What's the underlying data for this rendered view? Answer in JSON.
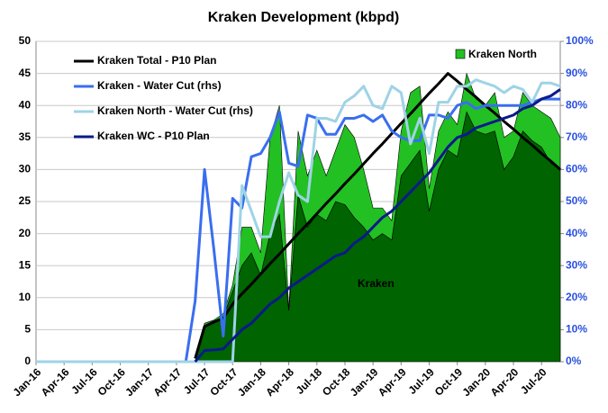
{
  "chart_data": {
    "type": "area",
    "title": "Kraken Development (kbpd)",
    "stacked": true,
    "grid": true,
    "categories": [
      "Jan-16",
      null,
      null,
      "Apr-16",
      null,
      null,
      "Jul-16",
      null,
      null,
      "Oct-16",
      null,
      null,
      "Jan-17",
      null,
      null,
      "Apr-17",
      null,
      null,
      "Jul-17",
      null,
      null,
      "Oct-17",
      null,
      null,
      "Jan-18",
      null,
      null,
      "Apr-18",
      null,
      null,
      "Jul-18",
      null,
      null,
      "Oct-18",
      null,
      null,
      "Jan-19",
      null,
      null,
      "Apr-19",
      null,
      null,
      "Jul-19",
      null,
      null,
      "Oct-19",
      null,
      null,
      "Jan-20",
      null,
      null,
      "Apr-20",
      null,
      null,
      "Jul-20",
      null,
      null
    ],
    "ylim": [
      0,
      50
    ],
    "yticks": [
      0,
      5,
      10,
      15,
      20,
      25,
      30,
      35,
      40,
      45,
      50
    ],
    "y2lim": [
      0,
      100
    ],
    "y2ticks": [
      {
        "value": 0,
        "label": "0%"
      },
      {
        "value": 10,
        "label": "10%"
      },
      {
        "value": 20,
        "label": "20%"
      },
      {
        "value": 30,
        "label": "30%"
      },
      {
        "value": 40,
        "label": "40%"
      },
      {
        "value": 50,
        "label": "50%"
      },
      {
        "value": 60,
        "label": "60%"
      },
      {
        "value": 70,
        "label": "70%"
      },
      {
        "value": 80,
        "label": "80%"
      },
      {
        "value": 90,
        "label": "90%"
      },
      {
        "value": 100,
        "label": "100%"
      }
    ],
    "series": [
      {
        "name": "Kraken",
        "type": "area",
        "color": "#006400",
        "values": [
          0,
          0,
          0,
          0,
          0,
          0,
          0,
          0,
          0,
          0,
          0,
          0,
          0,
          0,
          0,
          0,
          0,
          0,
          5.5,
          6,
          7,
          11,
          15,
          17,
          13.5,
          20,
          23,
          8,
          26,
          21,
          23,
          22,
          25,
          24.5,
          22.5,
          21,
          19,
          20,
          19,
          29,
          31,
          33,
          23.5,
          30,
          33,
          32,
          39,
          36,
          35.5,
          36,
          30,
          32,
          36,
          34.5,
          33.5,
          31,
          30
        ]
      },
      {
        "name": "Kraken North",
        "type": "area",
        "color": "#22c022",
        "values": [
          0,
          0,
          0,
          0,
          0,
          0,
          0,
          0,
          0,
          0,
          0,
          0,
          0,
          0,
          0,
          0,
          0,
          0,
          0.5,
          0.5,
          0.5,
          1,
          6,
          4,
          3.5,
          15,
          17,
          0,
          10,
          8,
          10,
          7,
          8,
          12.5,
          12.5,
          9,
          5,
          4,
          3,
          7,
          11,
          10,
          3.5,
          6,
          6,
          5,
          6,
          5,
          4.5,
          6,
          5,
          4,
          6,
          5.5,
          5.5,
          7,
          5
        ]
      },
      {
        "name": "Kraken Total - P10 Plan",
        "type": "line",
        "color": "#000000",
        "values": [
          null,
          null,
          null,
          null,
          null,
          null,
          null,
          null,
          null,
          null,
          null,
          null,
          null,
          null,
          null,
          null,
          null,
          0.5,
          5.5,
          6.2,
          6.8,
          9,
          10.6,
          12.1,
          13.7,
          15.3,
          16.8,
          18.4,
          20,
          21.5,
          23.1,
          24.7,
          26.2,
          27.8,
          29.3,
          30.9,
          32.5,
          34,
          35.6,
          37.2,
          38.7,
          40.3,
          41.9,
          43.4,
          45,
          43.8,
          42.5,
          41.3,
          40,
          38.8,
          37.5,
          36.3,
          35,
          33.8,
          32.5,
          31.3,
          30
        ]
      },
      {
        "name": "Kraken - Water Cut (rhs)",
        "type": "line",
        "axis": "y2",
        "color": "#3a6ef0",
        "values": [
          0,
          0,
          0,
          0,
          0,
          0,
          0,
          0,
          0,
          0,
          0,
          0,
          0,
          0,
          0,
          0,
          0,
          19,
          60,
          35,
          8,
          51,
          48,
          64,
          65,
          70,
          78,
          62,
          61,
          77,
          76,
          71,
          71,
          76,
          76,
          77,
          75,
          77,
          72,
          70,
          69,
          69,
          77,
          77,
          76,
          80,
          81,
          79,
          80,
          80,
          80,
          80,
          80,
          81,
          82,
          82,
          82
        ]
      },
      {
        "name": "Kraken North - Water Cut (rhs)",
        "type": "line",
        "axis": "y2",
        "color": "#9fd3e6",
        "values": [
          0,
          0,
          0,
          0,
          0,
          0,
          0,
          0,
          0,
          0,
          0,
          0,
          0,
          0,
          0,
          0,
          0,
          0,
          0,
          0,
          0,
          0,
          55,
          47,
          39,
          39,
          50,
          59,
          52,
          50,
          76,
          76,
          75,
          81,
          83,
          86,
          80,
          79,
          86,
          84,
          68,
          76,
          65,
          81,
          81,
          86,
          86,
          88,
          87,
          86,
          84,
          86,
          85,
          81,
          87,
          87,
          86
        ]
      },
      {
        "name": "Kraken WC - P10 Plan",
        "type": "line",
        "axis": "y2",
        "color": "#0a1a8a",
        "values": [
          null,
          null,
          null,
          null,
          null,
          null,
          null,
          null,
          null,
          null,
          null,
          null,
          null,
          null,
          null,
          null,
          null,
          0,
          3.5,
          3.7,
          4,
          7,
          10,
          12,
          15,
          18,
          20,
          23,
          25,
          27,
          29,
          31,
          33,
          34,
          37,
          39,
          42,
          45,
          47,
          50,
          53,
          56,
          59,
          63,
          67,
          70,
          71,
          73,
          74,
          75,
          76,
          77,
          79,
          80,
          82,
          83,
          85
        ]
      }
    ]
  }
}
